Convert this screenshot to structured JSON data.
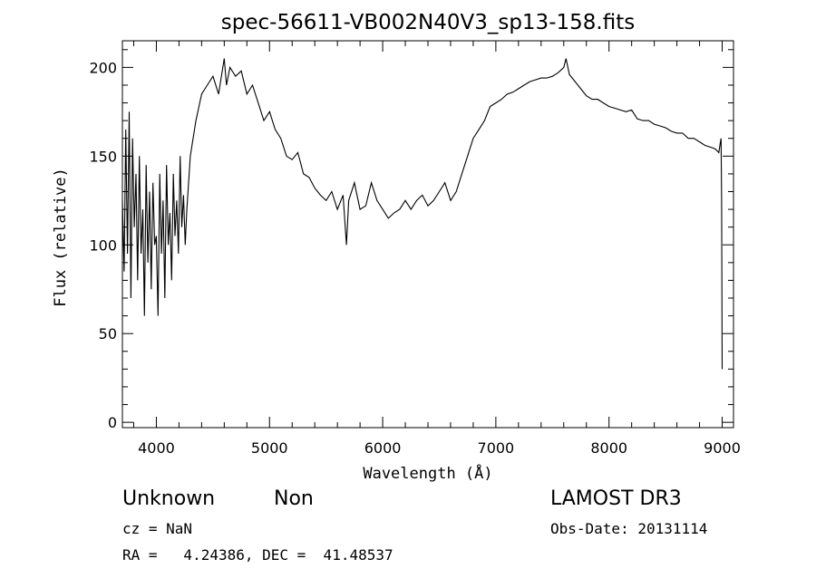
{
  "chart_data": {
    "type": "line",
    "title": "spec-56611-VB002N40V3_sp13-158.fits",
    "xlabel": "Wavelength (Å)",
    "ylabel": "Flux (relative)",
    "xlim": [
      3700,
      9100
    ],
    "ylim": [
      -3,
      215
    ],
    "x_ticks": [
      4000,
      5000,
      6000,
      7000,
      8000,
      9000
    ],
    "y_ticks": [
      0,
      50,
      100,
      150,
      200
    ],
    "x_minor_step": 200,
    "y_minor_step": 10,
    "grid": false,
    "line_color": "#000000",
    "series": [
      {
        "x": [
          3700,
          3715,
          3730,
          3745,
          3760,
          3775,
          3790,
          3805,
          3820,
          3835,
          3850,
          3865,
          3880,
          3895,
          3910,
          3925,
          3940,
          3955,
          3970,
          3985,
          4000,
          4015,
          4030,
          4045,
          4060,
          4075,
          4090,
          4105,
          4120,
          4135,
          4150,
          4165,
          4180,
          4195,
          4210,
          4225,
          4240,
          4255,
          4270,
          4300,
          4350,
          4400,
          4450,
          4500,
          4550,
          4600,
          4620,
          4650,
          4700,
          4750,
          4800,
          4850,
          4900,
          4950,
          5000,
          5050,
          5100,
          5150,
          5200,
          5250,
          5300,
          5350,
          5400,
          5450,
          5500,
          5550,
          5600,
          5650,
          5680,
          5700,
          5750,
          5800,
          5850,
          5900,
          5950,
          6000,
          6050,
          6100,
          6150,
          6200,
          6250,
          6300,
          6350,
          6400,
          6450,
          6500,
          6550,
          6600,
          6650,
          6700,
          6750,
          6800,
          6850,
          6900,
          6950,
          7000,
          7050,
          7100,
          7150,
          7200,
          7250,
          7300,
          7350,
          7400,
          7450,
          7500,
          7550,
          7600,
          7620,
          7650,
          7700,
          7750,
          7800,
          7850,
          7900,
          7950,
          8000,
          8050,
          8100,
          8150,
          8200,
          8250,
          8300,
          8350,
          8400,
          8450,
          8500,
          8550,
          8600,
          8650,
          8700,
          8750,
          8800,
          8850,
          8900,
          8940,
          8970,
          8985,
          8990,
          8995,
          9000
        ],
        "y": [
          125,
          85,
          165,
          95,
          175,
          70,
          160,
          110,
          140,
          80,
          150,
          95,
          120,
          60,
          145,
          90,
          130,
          75,
          135,
          100,
          105,
          60,
          140,
          95,
          125,
          70,
          145,
          100,
          118,
          80,
          140,
          105,
          125,
          95,
          150,
          110,
          128,
          100,
          120,
          150,
          170,
          185,
          190,
          195,
          185,
          205,
          190,
          200,
          195,
          198,
          185,
          190,
          180,
          170,
          175,
          165,
          160,
          150,
          148,
          152,
          140,
          138,
          132,
          128,
          125,
          130,
          120,
          128,
          100,
          125,
          135,
          120,
          122,
          135,
          125,
          120,
          115,
          118,
          120,
          125,
          120,
          125,
          128,
          122,
          125,
          130,
          135,
          125,
          130,
          140,
          150,
          160,
          165,
          170,
          178,
          180,
          182,
          185,
          186,
          188,
          190,
          192,
          193,
          194,
          194,
          195,
          197,
          200,
          205,
          196,
          192,
          188,
          184,
          182,
          182,
          180,
          178,
          177,
          176,
          175,
          176,
          171,
          170,
          170,
          168,
          167,
          166,
          164,
          163,
          163,
          160,
          160,
          158,
          156,
          155,
          154,
          152,
          158,
          160,
          125,
          30
        ]
      }
    ]
  },
  "info": {
    "class_label": "Unknown",
    "subclass_label": "Non",
    "survey_label": "LAMOST DR3",
    "cz_text": "cz = NaN",
    "obs_date_text": "Obs-Date: 20131114",
    "radec_text": "RA =   4.24386, DEC =  41.48537"
  }
}
